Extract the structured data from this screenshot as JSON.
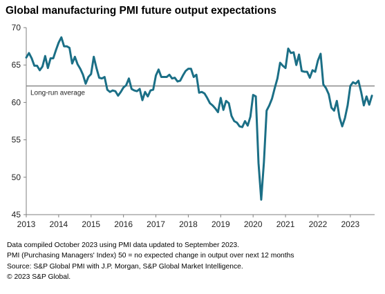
{
  "chart_data": {
    "type": "line",
    "title": "Global manufacturing PMI future output expectations",
    "xlabel": "",
    "ylabel": "",
    "ylim": [
      45,
      70
    ],
    "yticks": [
      45,
      50,
      55,
      60,
      65,
      70
    ],
    "xlim": [
      "2013-01",
      "2023-10"
    ],
    "xticks": [
      "2013",
      "2014",
      "2015",
      "2016",
      "2017",
      "2018",
      "2019",
      "2020",
      "2021",
      "2022",
      "2023"
    ],
    "grid": false,
    "reference_line": {
      "label": "Long-run average",
      "value": 62.2,
      "color": "#808080"
    },
    "series": [
      {
        "color": "#1b6f86",
        "points": [
          [
            "2013-01",
            66.0
          ],
          [
            "2013-02",
            66.6
          ],
          [
            "2013-03",
            65.9
          ],
          [
            "2013-04",
            64.9
          ],
          [
            "2013-05",
            64.9
          ],
          [
            "2013-06",
            64.3
          ],
          [
            "2013-07",
            64.8
          ],
          [
            "2013-08",
            66.2
          ],
          [
            "2013-09",
            64.6
          ],
          [
            "2013-10",
            65.9
          ],
          [
            "2013-11",
            65.9
          ],
          [
            "2013-12",
            67.0
          ],
          [
            "2014-01",
            68.0
          ],
          [
            "2014-02",
            68.7
          ],
          [
            "2014-03",
            67.5
          ],
          [
            "2014-04",
            67.5
          ],
          [
            "2014-05",
            67.3
          ],
          [
            "2014-06",
            65.2
          ],
          [
            "2014-07",
            66.1
          ],
          [
            "2014-08",
            65.1
          ],
          [
            "2014-09",
            64.5
          ],
          [
            "2014-10",
            63.7
          ],
          [
            "2014-11",
            62.5
          ],
          [
            "2014-12",
            63.4
          ],
          [
            "2015-01",
            63.8
          ],
          [
            "2015-02",
            66.1
          ],
          [
            "2015-03",
            64.6
          ],
          [
            "2015-04",
            63.3
          ],
          [
            "2015-05",
            63.2
          ],
          [
            "2015-06",
            63.4
          ],
          [
            "2015-07",
            61.7
          ],
          [
            "2015-08",
            61.4
          ],
          [
            "2015-09",
            61.6
          ],
          [
            "2015-10",
            61.5
          ],
          [
            "2015-11",
            60.9
          ],
          [
            "2015-12",
            61.4
          ],
          [
            "2016-01",
            62.0
          ],
          [
            "2016-02",
            62.3
          ],
          [
            "2016-03",
            63.2
          ],
          [
            "2016-04",
            61.8
          ],
          [
            "2016-05",
            61.6
          ],
          [
            "2016-06",
            61.5
          ],
          [
            "2016-07",
            61.8
          ],
          [
            "2016-08",
            60.3
          ],
          [
            "2016-09",
            61.4
          ],
          [
            "2016-10",
            60.8
          ],
          [
            "2016-11",
            61.6
          ],
          [
            "2016-12",
            61.7
          ],
          [
            "2017-01",
            63.6
          ],
          [
            "2017-02",
            64.4
          ],
          [
            "2017-03",
            63.4
          ],
          [
            "2017-04",
            63.4
          ],
          [
            "2017-05",
            63.4
          ],
          [
            "2017-06",
            63.7
          ],
          [
            "2017-07",
            63.2
          ],
          [
            "2017-08",
            63.3
          ],
          [
            "2017-09",
            62.8
          ],
          [
            "2017-10",
            62.9
          ],
          [
            "2017-11",
            63.6
          ],
          [
            "2017-12",
            64.2
          ],
          [
            "2018-01",
            64.5
          ],
          [
            "2018-02",
            64.5
          ],
          [
            "2018-03",
            63.4
          ],
          [
            "2018-04",
            63.7
          ],
          [
            "2018-05",
            61.3
          ],
          [
            "2018-06",
            61.4
          ],
          [
            "2018-07",
            61.2
          ],
          [
            "2018-08",
            60.6
          ],
          [
            "2018-09",
            59.9
          ],
          [
            "2018-10",
            59.6
          ],
          [
            "2018-11",
            59.2
          ],
          [
            "2018-12",
            58.7
          ],
          [
            "2019-01",
            60.6
          ],
          [
            "2019-02",
            59.0
          ],
          [
            "2019-03",
            60.2
          ],
          [
            "2019-04",
            59.9
          ],
          [
            "2019-05",
            58.2
          ],
          [
            "2019-06",
            57.5
          ],
          [
            "2019-07",
            57.3
          ],
          [
            "2019-08",
            56.8
          ],
          [
            "2019-09",
            56.7
          ],
          [
            "2019-10",
            57.5
          ],
          [
            "2019-11",
            56.9
          ],
          [
            "2019-12",
            58.1
          ],
          [
            "2020-01",
            61.0
          ],
          [
            "2020-02",
            60.8
          ],
          [
            "2020-03",
            51.9
          ],
          [
            "2020-04",
            47.0
          ],
          [
            "2020-05",
            52.0
          ],
          [
            "2020-06",
            58.9
          ],
          [
            "2020-07",
            59.6
          ],
          [
            "2020-08",
            60.5
          ],
          [
            "2020-09",
            61.9
          ],
          [
            "2020-10",
            63.2
          ],
          [
            "2020-11",
            65.3
          ],
          [
            "2020-12",
            64.9
          ],
          [
            "2021-01",
            64.6
          ],
          [
            "2021-02",
            67.2
          ],
          [
            "2021-03",
            66.6
          ],
          [
            "2021-04",
            66.7
          ],
          [
            "2021-05",
            65.0
          ],
          [
            "2021-06",
            66.4
          ],
          [
            "2021-07",
            64.2
          ],
          [
            "2021-08",
            64.1
          ],
          [
            "2021-09",
            64.1
          ],
          [
            "2021-10",
            63.3
          ],
          [
            "2021-11",
            64.3
          ],
          [
            "2021-12",
            64.1
          ],
          [
            "2022-01",
            65.6
          ],
          [
            "2022-02",
            66.5
          ],
          [
            "2022-03",
            62.4
          ],
          [
            "2022-04",
            61.9
          ],
          [
            "2022-05",
            61.1
          ],
          [
            "2022-06",
            59.3
          ],
          [
            "2022-07",
            58.9
          ],
          [
            "2022-08",
            60.2
          ],
          [
            "2022-09",
            58.0
          ],
          [
            "2022-10",
            56.8
          ],
          [
            "2022-11",
            57.9
          ],
          [
            "2022-12",
            59.6
          ],
          [
            "2023-01",
            62.2
          ],
          [
            "2023-02",
            62.7
          ],
          [
            "2023-03",
            62.5
          ],
          [
            "2023-04",
            62.9
          ],
          [
            "2023-05",
            61.4
          ],
          [
            "2023-06",
            59.6
          ],
          [
            "2023-07",
            60.8
          ],
          [
            "2023-08",
            59.7
          ],
          [
            "2023-09",
            60.9
          ]
        ]
      }
    ]
  },
  "notes": [
    "Data compiled October 2023 using PMI data updated to September 2023.",
    "PMI (Purchasing Managers' Index) 50 = no expected change in output over next 12 months",
    "Source: S&P Global  PMI with J.P. Morgan, S&P Global Market Intelligence.",
    "© 2023 S&P Global."
  ]
}
